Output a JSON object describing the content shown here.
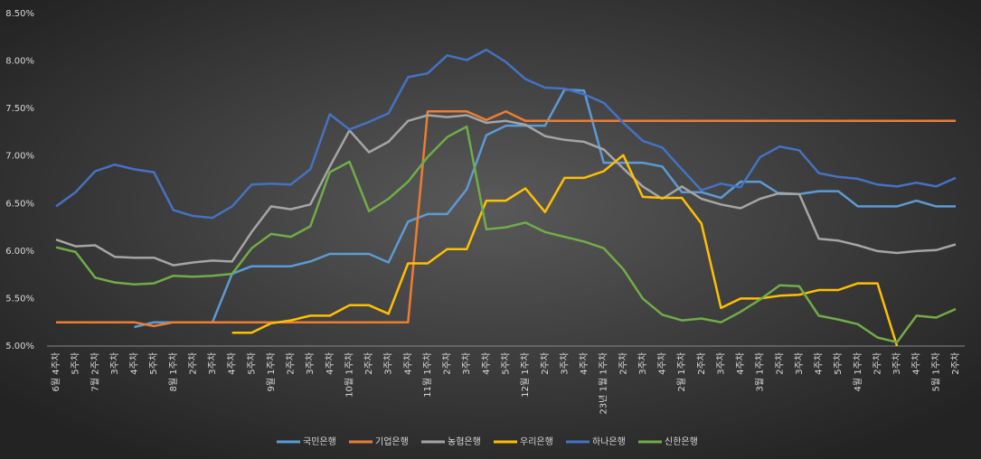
{
  "chart_data": {
    "type": "line",
    "categories": [
      "6월 4주차",
      "5주차",
      "7월 2주차",
      "3주차",
      "4주차",
      "5주차",
      "8월 1주차",
      "2주차",
      "3주차",
      "4주차",
      "5주차",
      "9월 1주차",
      "2주차",
      "3주차",
      "4주차",
      "10월 1주차",
      "2주차",
      "3주차",
      "4주차",
      "11월 1주차",
      "2주차",
      "3주차",
      "4주차",
      "5주차",
      "12월 1주차",
      "2주차",
      "3주차",
      "4주차",
      "23년 1월 1주차",
      "2주차",
      "3주차",
      "4주차",
      "2월 1주차",
      "2주차",
      "3주차",
      "4주차",
      "3월 1주차",
      "2주차",
      "3주차",
      "4주차",
      "5주차",
      "4월 1주차",
      "2주차",
      "3주차",
      "4주차",
      "5월 1주차",
      "2주차"
    ],
    "series": [
      {
        "name": "국민은행",
        "color": "#5b9bd5",
        "values": [
          null,
          null,
          null,
          null,
          5.2,
          5.25,
          5.25,
          5.25,
          5.25,
          5.76,
          5.84,
          5.84,
          5.84,
          5.89,
          5.97,
          5.97,
          5.97,
          5.88,
          6.31,
          6.39,
          6.39,
          6.65,
          7.22,
          7.32,
          7.32,
          7.32,
          7.7,
          7.69,
          6.93,
          6.93,
          6.93,
          6.89,
          6.62,
          6.62,
          6.56,
          6.73,
          6.73,
          6.6,
          6.6,
          6.63,
          6.63,
          6.47,
          6.47,
          6.47,
          6.53,
          6.47,
          6.47
        ]
      },
      {
        "name": "기업은행",
        "color": "#ed7d31",
        "values": [
          5.25,
          5.25,
          5.25,
          5.25,
          5.25,
          5.21,
          5.25,
          5.25,
          5.25,
          5.25,
          5.25,
          5.25,
          5.25,
          5.25,
          5.25,
          5.25,
          5.25,
          5.25,
          5.25,
          7.47,
          7.47,
          7.47,
          7.38,
          7.47,
          7.37,
          7.37,
          7.37,
          7.37,
          7.37,
          7.37,
          7.37,
          7.37,
          7.37,
          7.37,
          7.37,
          7.37,
          7.37,
          7.37,
          7.37,
          7.37,
          7.37,
          7.37,
          7.37,
          7.37,
          7.37,
          7.37,
          7.37
        ]
      },
      {
        "name": "농협은행",
        "color": "#a5a5a5",
        "values": [
          6.12,
          6.05,
          6.06,
          5.94,
          5.93,
          5.93,
          5.85,
          5.88,
          5.9,
          5.89,
          6.2,
          6.47,
          6.44,
          6.49,
          6.89,
          7.27,
          7.04,
          7.15,
          7.37,
          7.43,
          7.41,
          7.43,
          7.35,
          7.37,
          7.33,
          7.21,
          7.17,
          7.15,
          7.07,
          6.87,
          6.68,
          6.55,
          6.68,
          6.55,
          6.49,
          6.45,
          6.55,
          6.61,
          6.6,
          6.13,
          6.11,
          6.06,
          6.0,
          5.98,
          6.0,
          6.01,
          6.07
        ]
      },
      {
        "name": "우리은행",
        "color": "#ffc000",
        "values": [
          null,
          null,
          null,
          null,
          null,
          null,
          null,
          null,
          null,
          5.14,
          5.14,
          5.24,
          5.27,
          5.32,
          5.32,
          5.43,
          5.43,
          5.34,
          5.87,
          5.87,
          6.02,
          6.02,
          6.53,
          6.53,
          6.66,
          6.41,
          6.77,
          6.77,
          6.84,
          7.01,
          6.57,
          6.56,
          6.56,
          6.29,
          5.4,
          5.5,
          5.5,
          5.53,
          5.54,
          5.59,
          5.59,
          5.66,
          5.66,
          5.0,
          null,
          null,
          null
        ]
      },
      {
        "name": "하나은행",
        "color": "#4472c4",
        "values": [
          6.47,
          6.62,
          6.84,
          6.91,
          6.86,
          6.83,
          6.43,
          6.37,
          6.35,
          6.47,
          6.7,
          6.71,
          6.7,
          6.86,
          7.44,
          7.28,
          7.36,
          7.45,
          7.83,
          7.87,
          8.06,
          8.01,
          8.12,
          7.99,
          7.81,
          7.72,
          7.71,
          7.65,
          7.56,
          7.35,
          7.16,
          7.09,
          6.86,
          6.64,
          6.71,
          6.67,
          6.99,
          7.1,
          7.06,
          6.82,
          6.78,
          6.76,
          6.7,
          6.68,
          6.72,
          6.68,
          6.77
        ]
      },
      {
        "name": "신한은행",
        "color": "#70ad47",
        "values": [
          6.04,
          5.99,
          5.72,
          5.67,
          5.65,
          5.66,
          5.74,
          5.73,
          5.74,
          5.76,
          6.03,
          6.18,
          6.15,
          6.26,
          6.83,
          6.94,
          6.42,
          6.55,
          6.73,
          6.99,
          7.2,
          7.31,
          6.23,
          6.25,
          6.3,
          6.2,
          6.15,
          6.1,
          6.03,
          5.81,
          5.5,
          5.33,
          5.27,
          5.29,
          5.25,
          5.36,
          5.49,
          5.64,
          5.63,
          5.32,
          5.28,
          5.23,
          5.09,
          5.04,
          5.32,
          5.3,
          5.39
        ]
      }
    ],
    "ylim": [
      5,
      8.5
    ],
    "yticks": [
      {
        "value": 5,
        "label": "5.00%"
      },
      {
        "value": 5.5,
        "label": "5.50%"
      },
      {
        "value": 6,
        "label": "6.00%"
      },
      {
        "value": 6.5,
        "label": "6.50%"
      },
      {
        "value": 7,
        "label": "7.00%"
      },
      {
        "value": 7.5,
        "label": "7.50%"
      },
      {
        "value": 8,
        "label": "8.00%"
      },
      {
        "value": 8.5,
        "label": "8.50%"
      }
    ],
    "grid": false,
    "legend": "bottom"
  }
}
